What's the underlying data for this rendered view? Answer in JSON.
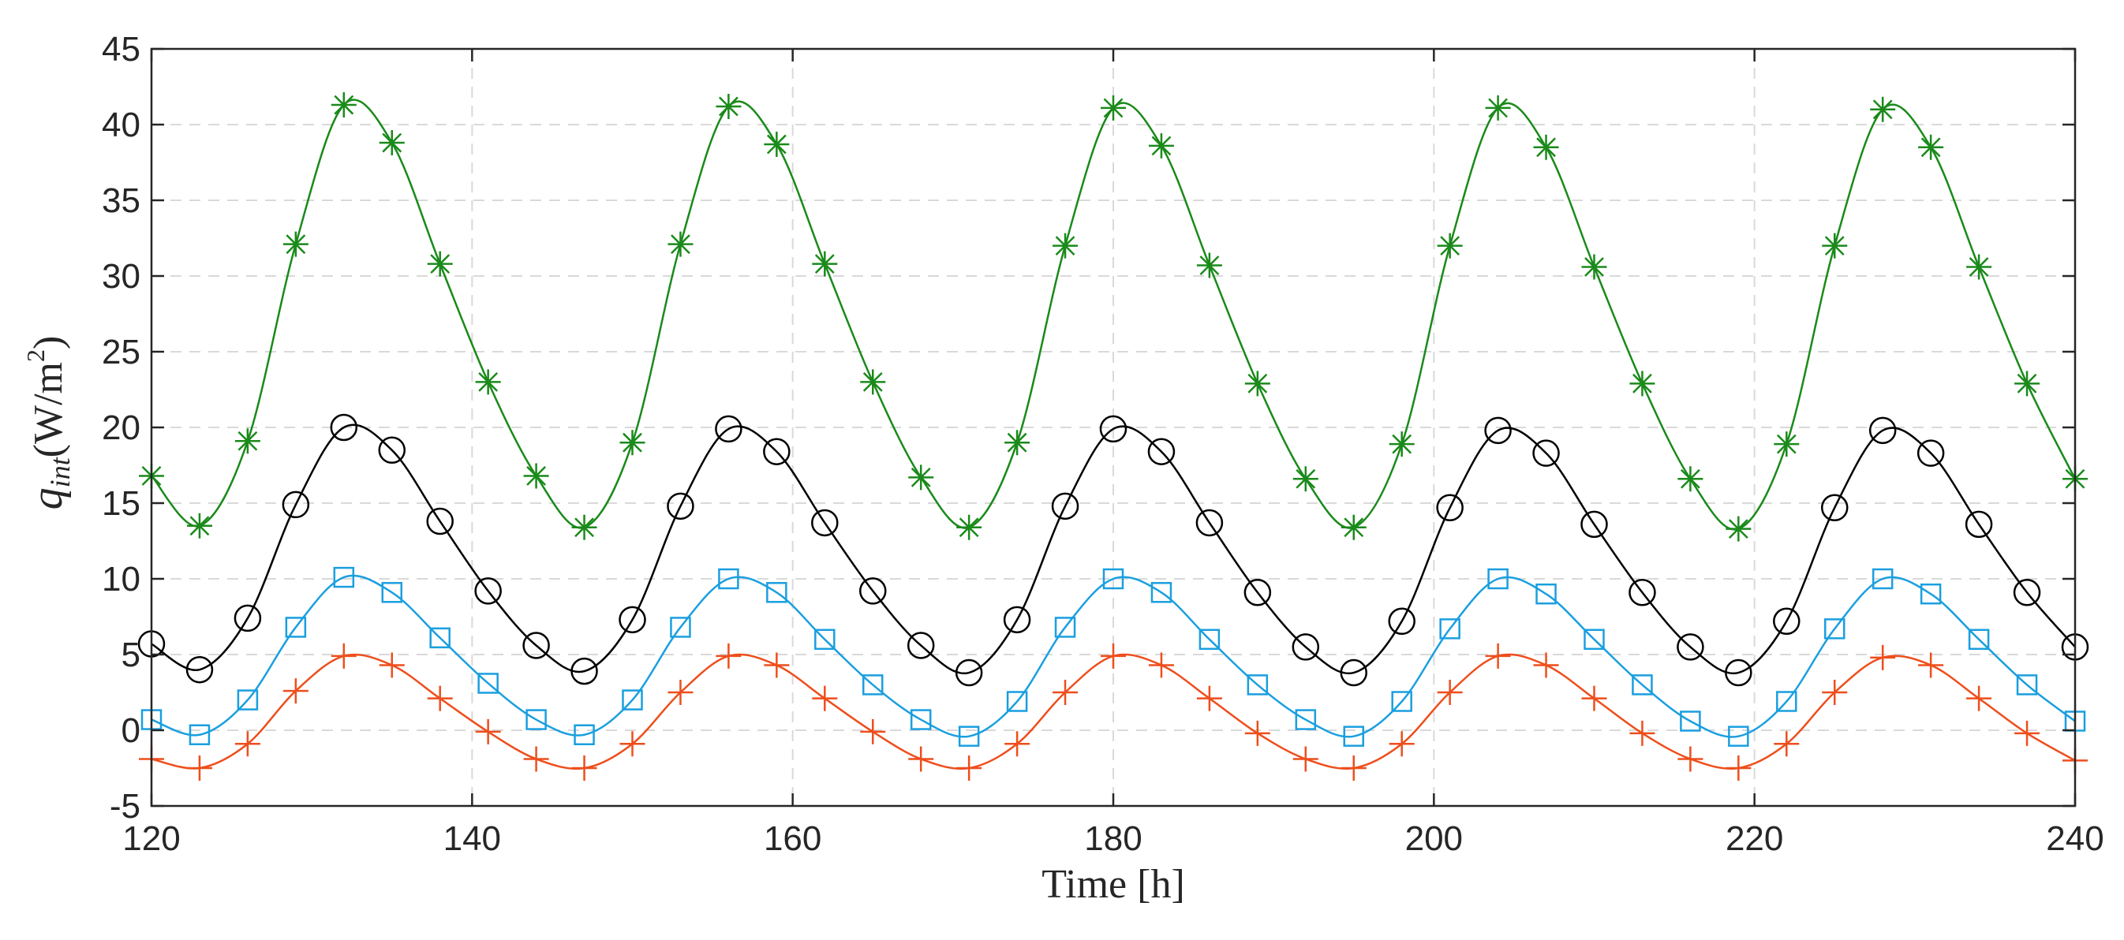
{
  "chart_data": {
    "type": "line",
    "title": "",
    "xlabel": "Time [h]",
    "ylabel_prefix": "q",
    "ylabel_sub": "int",
    "ylabel_units_open": "(W/m",
    "ylabel_units_exp": "2",
    "ylabel_units_close": ")",
    "xlim": [
      120,
      240
    ],
    "ylim": [
      -5,
      45
    ],
    "xticks": [
      120,
      140,
      160,
      180,
      200,
      220,
      240
    ],
    "yticks": [
      -5,
      0,
      5,
      10,
      15,
      20,
      25,
      30,
      35,
      40,
      45
    ],
    "xtick_labels": [
      "120",
      "140",
      "160",
      "180",
      "200",
      "220",
      "240"
    ],
    "ytick_labels": [
      "-5",
      "0",
      "5",
      "10",
      "15",
      "20",
      "25",
      "30",
      "35",
      "40",
      "45"
    ],
    "grid": true,
    "legend": "none",
    "series": [
      {
        "name": "series-green-star",
        "color": "#1a8a1a",
        "marker": "asterisk",
        "x": [
          120,
          123,
          126,
          129,
          132,
          135,
          138,
          141,
          144,
          147,
          150,
          153,
          156,
          159,
          162,
          165,
          168,
          171,
          174,
          177,
          180,
          183,
          186,
          189,
          192,
          195,
          198,
          201,
          204,
          207,
          210,
          213,
          216,
          219,
          222,
          225,
          228,
          231,
          234,
          237,
          240
        ],
        "values": [
          16.8,
          13.5,
          19.1,
          32.1,
          41.3,
          38.8,
          30.8,
          23.0,
          16.8,
          13.4,
          19.0,
          32.1,
          41.2,
          38.7,
          30.8,
          23.0,
          16.7,
          13.4,
          19.0,
          32.0,
          41.1,
          38.6,
          30.7,
          22.9,
          16.6,
          13.4,
          18.9,
          32.0,
          41.1,
          38.5,
          30.6,
          22.9,
          16.6,
          13.3,
          18.9,
          32.0,
          41.0,
          38.5,
          30.6,
          22.9,
          16.6
        ]
      },
      {
        "name": "series-black-circle",
        "color": "#000000",
        "marker": "circle",
        "x": [
          120,
          123,
          126,
          129,
          132,
          135,
          138,
          141,
          144,
          147,
          150,
          153,
          156,
          159,
          162,
          165,
          168,
          171,
          174,
          177,
          180,
          183,
          186,
          189,
          192,
          195,
          198,
          201,
          204,
          207,
          210,
          213,
          216,
          219,
          222,
          225,
          228,
          231,
          234,
          237,
          240
        ],
        "values": [
          5.7,
          4.0,
          7.4,
          14.9,
          20.0,
          18.5,
          13.8,
          9.2,
          5.6,
          3.9,
          7.3,
          14.8,
          19.9,
          18.4,
          13.7,
          9.2,
          5.6,
          3.8,
          7.3,
          14.8,
          19.9,
          18.4,
          13.7,
          9.1,
          5.5,
          3.8,
          7.2,
          14.7,
          19.8,
          18.3,
          13.6,
          9.1,
          5.5,
          3.8,
          7.2,
          14.7,
          19.8,
          18.3,
          13.6,
          9.1,
          5.5
        ]
      },
      {
        "name": "series-blue-square",
        "color": "#1a9fdf",
        "marker": "square",
        "x": [
          120,
          123,
          126,
          129,
          132,
          135,
          138,
          141,
          144,
          147,
          150,
          153,
          156,
          159,
          162,
          165,
          168,
          171,
          174,
          177,
          180,
          183,
          186,
          189,
          192,
          195,
          198,
          201,
          204,
          207,
          210,
          213,
          216,
          219,
          222,
          225,
          228,
          231,
          234,
          237,
          240
        ],
        "values": [
          0.7,
          -0.3,
          2.0,
          6.8,
          10.1,
          9.1,
          6.1,
          3.1,
          0.7,
          -0.3,
          2.0,
          6.8,
          10.0,
          9.1,
          6.0,
          3.0,
          0.7,
          -0.4,
          1.9,
          6.8,
          10.0,
          9.1,
          6.0,
          3.0,
          0.7,
          -0.4,
          1.9,
          6.7,
          10.0,
          9.0,
          6.0,
          3.0,
          0.6,
          -0.4,
          1.9,
          6.7,
          10.0,
          9.0,
          6.0,
          3.0,
          0.6
        ]
      },
      {
        "name": "series-orange-plus",
        "color": "#ee4e1c",
        "marker": "plus",
        "x": [
          120,
          123,
          126,
          129,
          132,
          135,
          138,
          141,
          144,
          147,
          150,
          153,
          156,
          159,
          162,
          165,
          168,
          171,
          174,
          177,
          180,
          183,
          186,
          189,
          192,
          195,
          198,
          201,
          204,
          207,
          210,
          213,
          216,
          219,
          222,
          225,
          228,
          231,
          234,
          237,
          240
        ],
        "values": [
          -1.9,
          -2.5,
          -0.9,
          2.6,
          4.9,
          4.3,
          2.1,
          -0.1,
          -1.9,
          -2.5,
          -0.9,
          2.5,
          4.9,
          4.3,
          2.1,
          -0.1,
          -1.9,
          -2.5,
          -0.9,
          2.5,
          4.9,
          4.3,
          2.1,
          -0.2,
          -1.9,
          -2.5,
          -0.9,
          2.5,
          4.9,
          4.3,
          2.1,
          -0.2,
          -1.9,
          -2.5,
          -0.9,
          2.5,
          4.8,
          4.3,
          2.1,
          -0.2,
          -2.0
        ]
      }
    ]
  }
}
